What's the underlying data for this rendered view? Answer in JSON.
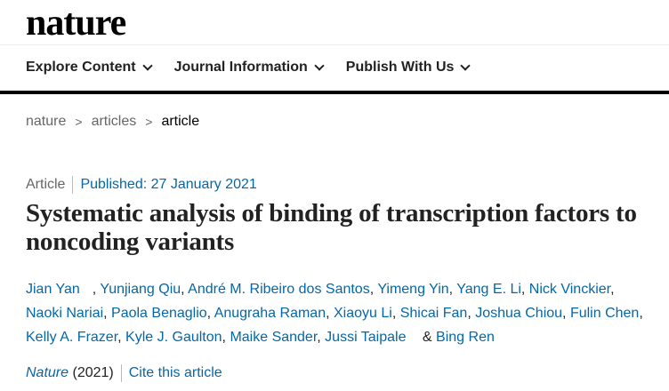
{
  "header": {
    "logo": "nature"
  },
  "nav": [
    {
      "label": "Explore Content"
    },
    {
      "label": "Journal Information"
    },
    {
      "label": "Publish With Us"
    }
  ],
  "breadcrumb": [
    {
      "label": "nature"
    },
    {
      "label": "articles"
    },
    {
      "label": "article"
    }
  ],
  "article": {
    "type": "Article",
    "published": "Published: 27 January 2021",
    "title": "Systematic analysis of binding of transcription factors to noncoding variants",
    "authors": [
      "Jian Yan",
      "Yunjiang Qiu",
      "André M. Ribeiro dos Santos",
      "Yimeng Yin",
      "Yang E. Li",
      "Nick Vinckier",
      "Naoki Nariai",
      "Paola Benaglio",
      "Anugraha Raman",
      "Xiaoyu Li",
      "Shicai Fan",
      "Joshua Chiou",
      "Fulin Chen",
      "Kelly A. Frazer",
      "Kyle J. Gaulton",
      "Maike Sander",
      "Jussi Taipale",
      "Bing Ren"
    ],
    "journal": "Nature",
    "year": "(2021)",
    "cite_label": "Cite this article"
  },
  "colors": {
    "link": "#0567a8",
    "text": "#222222",
    "muted": "#666666"
  }
}
